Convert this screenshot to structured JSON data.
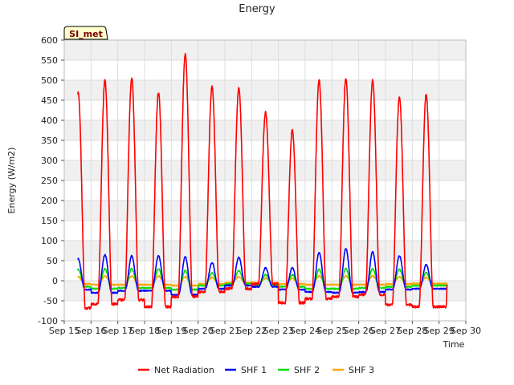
{
  "chart_data": {
    "type": "line",
    "title": "Energy",
    "xlabel": "Time",
    "ylabel": "Energy (W/m2)",
    "site_label": "SI_met",
    "ylim": [
      -100,
      600
    ],
    "xlim": [
      15,
      30
    ],
    "yticks": [
      -100,
      -50,
      0,
      50,
      100,
      150,
      200,
      250,
      300,
      350,
      400,
      450,
      500,
      550,
      600
    ],
    "xticks": [
      {
        "x": 15,
        "label": "Sep 15"
      },
      {
        "x": 16,
        "label": "Sep 16"
      },
      {
        "x": 17,
        "label": "Sep 17"
      },
      {
        "x": 18,
        "label": "Sep 18"
      },
      {
        "x": 19,
        "label": "Sep 19"
      },
      {
        "x": 20,
        "label": "Sep 20"
      },
      {
        "x": 21,
        "label": "Sep 21"
      },
      {
        "x": 22,
        "label": "Sep 22"
      },
      {
        "x": 23,
        "label": "Sep 23"
      },
      {
        "x": 24,
        "label": "Sep 24"
      },
      {
        "x": 25,
        "label": "Sep 25"
      },
      {
        "x": 26,
        "label": "Sep 26"
      },
      {
        "x": 27,
        "label": "Sep 27"
      },
      {
        "x": 28,
        "label": "Sep 28"
      },
      {
        "x": 29,
        "label": "Sep 29"
      },
      {
        "x": 30,
        "label": "Sep 30"
      }
    ],
    "grid": true,
    "legend_position": "bottom-center",
    "days": [
      15,
      16,
      17,
      18,
      19,
      20,
      21,
      22,
      23,
      24,
      25,
      26,
      27,
      28
    ],
    "x_start": 15.5,
    "x_end": 29.3,
    "series": [
      {
        "name": "Net Radiation",
        "color": "#ff0000",
        "peaks": [
          470,
          500,
          505,
          470,
          565,
          485,
          480,
          420,
          375,
          500,
          505,
          500,
          460,
          465
        ],
        "night": [
          -68,
          -58,
          -48,
          -65,
          -40,
          -28,
          -20,
          -8,
          -55,
          -45,
          -40,
          -35,
          -60,
          -65
        ]
      },
      {
        "name": "SHF 1",
        "color": "#0000ff",
        "peaks": [
          55,
          65,
          62,
          62,
          60,
          45,
          58,
          32,
          32,
          70,
          80,
          72,
          62,
          40
        ],
        "night": [
          -22,
          -30,
          -25,
          -25,
          -35,
          -20,
          -12,
          -15,
          -22,
          -28,
          -30,
          -28,
          -22,
          -20
        ]
      },
      {
        "name": "SHF 2",
        "color": "#00dd00",
        "peaks": [
          28,
          30,
          30,
          30,
          25,
          20,
          25,
          15,
          15,
          28,
          30,
          30,
          28,
          20
        ],
        "night": [
          -15,
          -20,
          -18,
          -18,
          -22,
          -12,
          -8,
          -10,
          -15,
          -20,
          -20,
          -18,
          -15,
          -12
        ]
      },
      {
        "name": "SHF 3",
        "color": "#ffa500",
        "peaks": [
          10,
          12,
          12,
          12,
          10,
          8,
          10,
          6,
          6,
          12,
          12,
          12,
          10,
          8
        ],
        "night": [
          -8,
          -10,
          -10,
          -10,
          -12,
          -8,
          -5,
          -5,
          -8,
          -10,
          -10,
          -10,
          -8,
          -7
        ]
      }
    ]
  }
}
